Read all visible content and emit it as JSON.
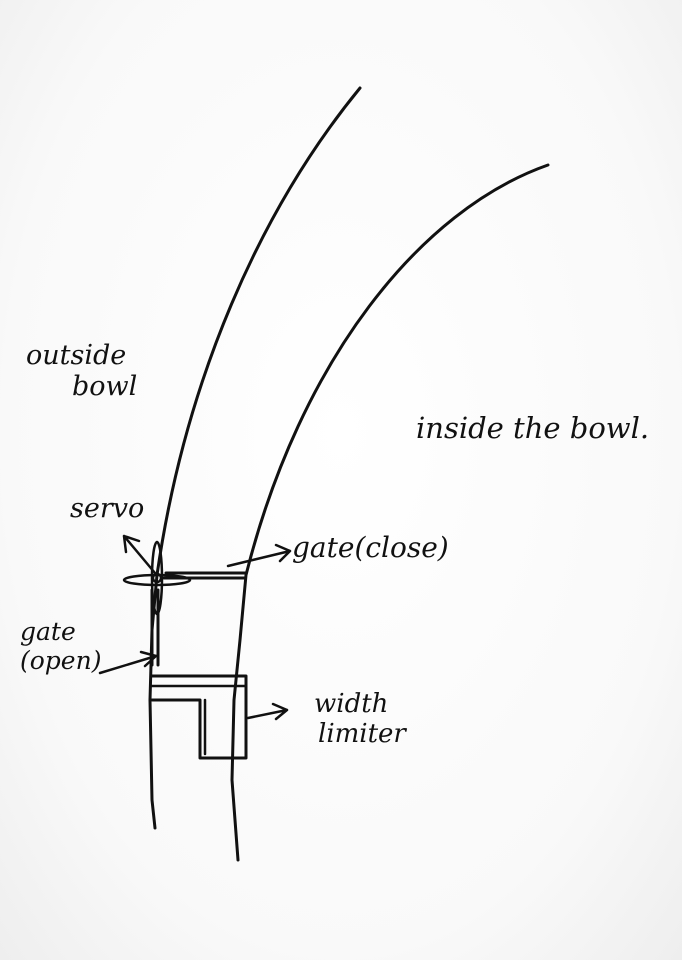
{
  "labels": {
    "outside_line1": "outside",
    "outside_line2": "bowl",
    "inside": "inside the bowl.",
    "servo": "servo",
    "gate_close": "gate(close)",
    "gate_open_line1": "gate",
    "gate_open_line2": "(open)",
    "width_line1": "width",
    "width_line2": "limiter"
  }
}
